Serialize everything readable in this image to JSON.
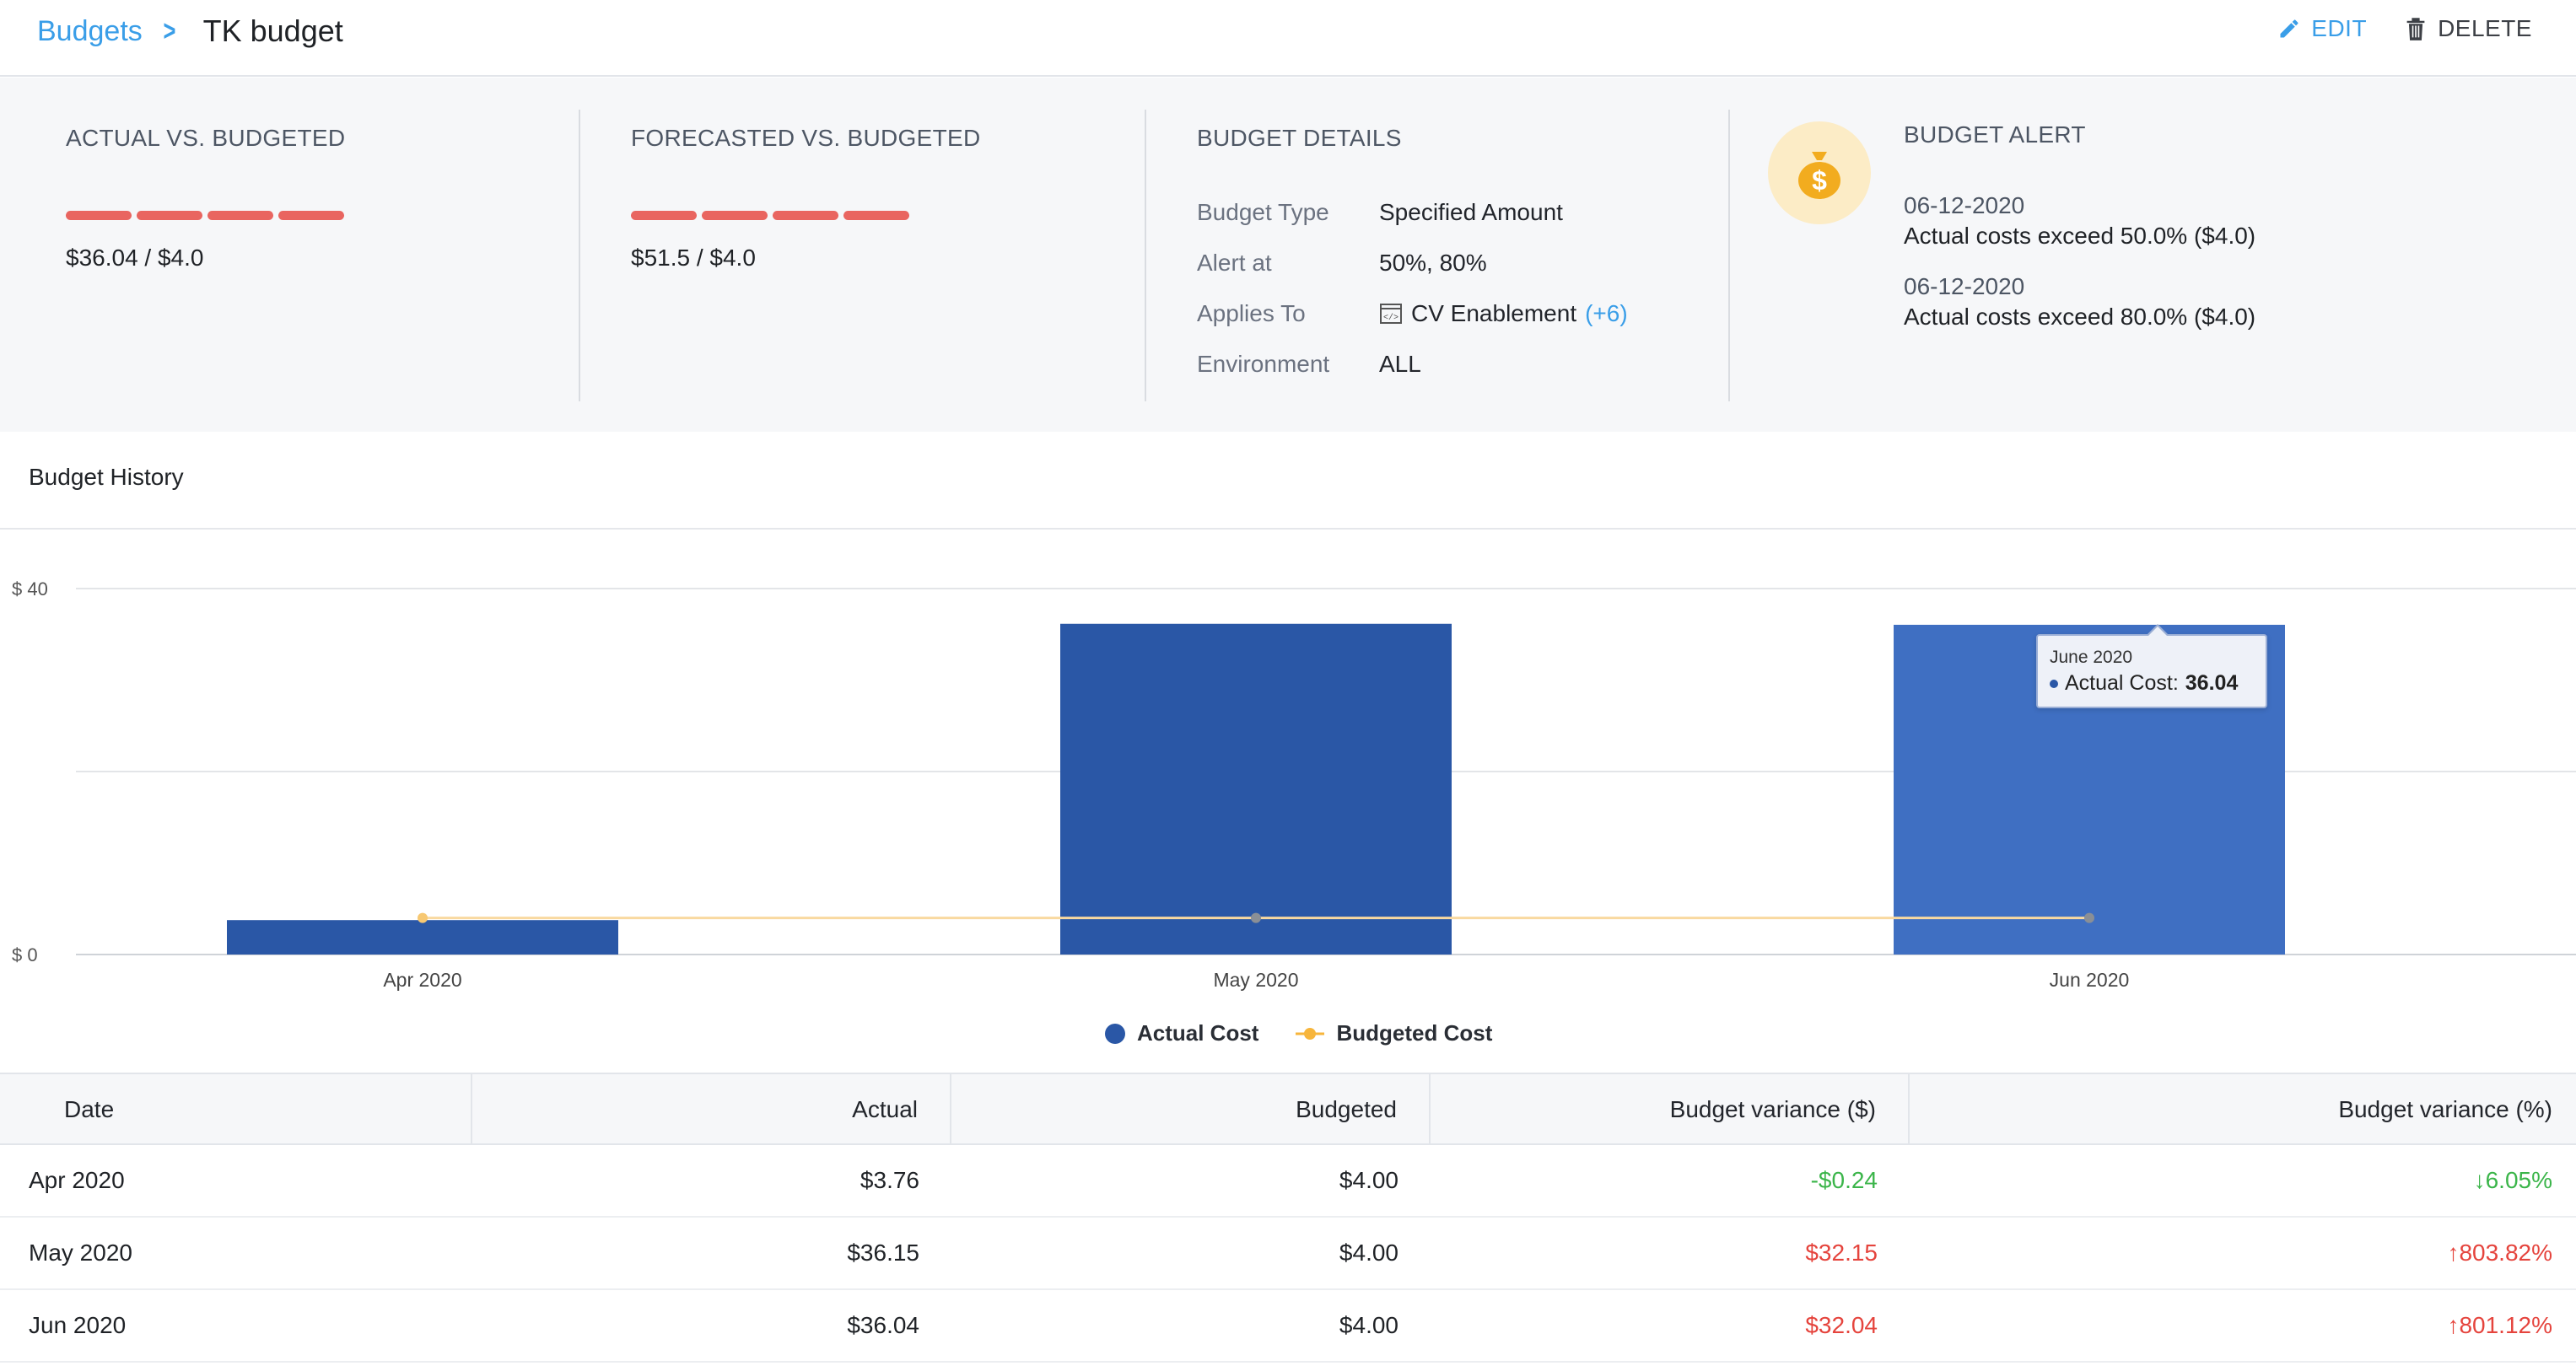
{
  "breadcrumb": {
    "root": "Budgets",
    "current": "TK budget"
  },
  "actions": {
    "edit": "EDIT",
    "delete": "DELETE"
  },
  "actual_vs_budgeted": {
    "title": "ACTUAL VS. BUDGETED",
    "value": "$36.04 / $4.0",
    "progress_color": "#e96560"
  },
  "forecasted_vs_budgeted": {
    "title": "FORECASTED VS. BUDGETED",
    "value": "$51.5 / $4.0",
    "progress_color": "#e96560"
  },
  "budget_details": {
    "title": "BUDGET DETAILS",
    "rows": [
      {
        "key": "Budget Type",
        "value": "Specified Amount"
      },
      {
        "key": "Alert at",
        "value": "50%, 80%"
      },
      {
        "key": "Applies To",
        "value": "CV Enablement",
        "extra": "(+6)",
        "icon": "application-icon"
      },
      {
        "key": "Environment",
        "value": "ALL"
      }
    ]
  },
  "budget_alert": {
    "title": "BUDGET ALERT",
    "icon": "money-bag-icon",
    "alerts": [
      {
        "date": "06-12-2020",
        "text": "Actual costs exceed 50.0% ($4.0)"
      },
      {
        "date": "06-12-2020",
        "text": "Actual costs exceed 80.0% ($4.0)"
      }
    ]
  },
  "history": {
    "title": "Budget History"
  },
  "chart_data": {
    "type": "bar",
    "categories": [
      "Apr 2020",
      "May 2020",
      "Jun 2020"
    ],
    "series": [
      {
        "name": "Actual Cost",
        "type": "bar",
        "values": [
          3.76,
          36.15,
          36.04
        ],
        "color": "#2a57a6",
        "highlight_color": "#3f6fc2"
      },
      {
        "name": "Budgeted Cost",
        "type": "line",
        "values": [
          4.0,
          4.0,
          4.0
        ],
        "color": "#f7b53b"
      }
    ],
    "y_ticks": [
      "$ 40",
      "$ 0"
    ],
    "ylim": [
      0,
      40
    ],
    "grid": true,
    "legend": "bottom-center",
    "tooltip": {
      "title": "June 2020",
      "label": "Actual Cost:",
      "value": "36.04"
    }
  },
  "table": {
    "headers": [
      "Date",
      "Actual",
      "Budgeted",
      "Budget variance ($)",
      "Budget variance (%)"
    ],
    "rows": [
      {
        "date": "Apr 2020",
        "actual": "$3.76",
        "budgeted": "$4.00",
        "var_usd": "-$0.24",
        "var_pct": "↓6.05%",
        "status": "under"
      },
      {
        "date": "May 2020",
        "actual": "$36.15",
        "budgeted": "$4.00",
        "var_usd": "$32.15",
        "var_pct": "↑803.82%",
        "status": "over"
      },
      {
        "date": "Jun 2020",
        "actual": "$36.04",
        "budgeted": "$4.00",
        "var_usd": "$32.04",
        "var_pct": "↑801.12%",
        "status": "over"
      }
    ]
  }
}
